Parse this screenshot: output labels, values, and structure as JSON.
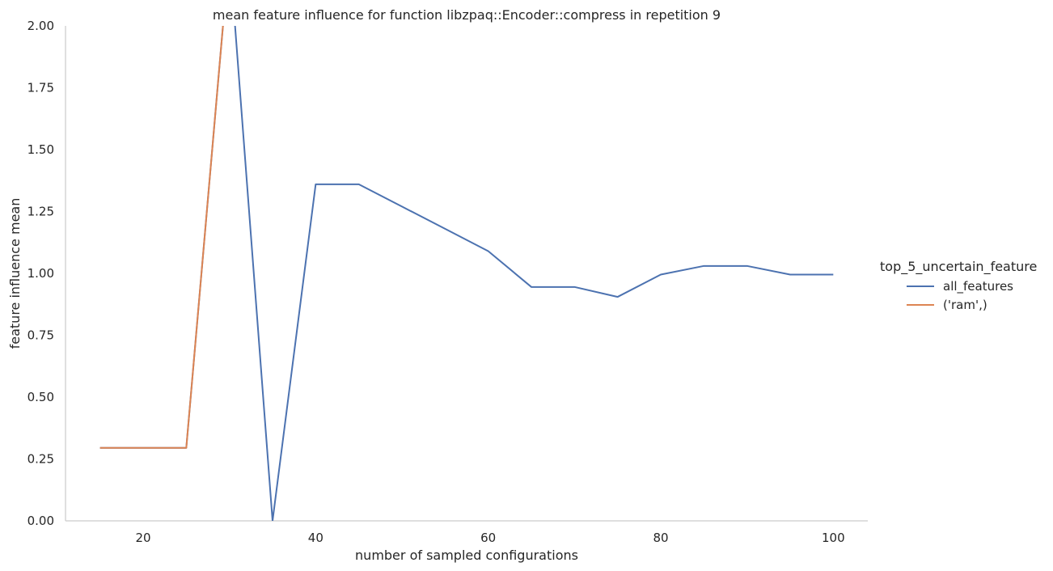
{
  "chart_data": {
    "type": "line",
    "title": "mean feature influence for function libzpaq::Encoder::compress in repetition 9",
    "xlabel": "number of sampled configurations",
    "ylabel": "feature influence mean",
    "xlim": [
      11,
      104
    ],
    "ylim": [
      0,
      2
    ],
    "xticks": [
      20,
      40,
      60,
      80,
      100
    ],
    "yticks": [
      "0.00",
      "0.25",
      "0.50",
      "0.75",
      "1.00",
      "1.25",
      "1.50",
      "1.75",
      "2.00"
    ],
    "grid": false,
    "legend": {
      "title": "top_5_uncertain_feature",
      "placement": "right"
    },
    "series": [
      {
        "name": "all_features",
        "color": "#4c72b0",
        "x": [
          15,
          20,
          25,
          30,
          35,
          40,
          45,
          50,
          55,
          60,
          65,
          70,
          75,
          80,
          85,
          90,
          95,
          100
        ],
        "y": [
          0.295,
          0.295,
          0.295,
          2.3,
          0.0,
          1.36,
          1.36,
          1.27,
          1.18,
          1.09,
          0.945,
          0.945,
          0.905,
          0.995,
          1.03,
          1.03,
          0.995,
          0.995
        ]
      },
      {
        "name": "('ram',)",
        "color": "#dd8452",
        "x": [
          15,
          20,
          25,
          30
        ],
        "y": [
          0.295,
          0.295,
          0.295,
          2.3
        ]
      }
    ]
  }
}
